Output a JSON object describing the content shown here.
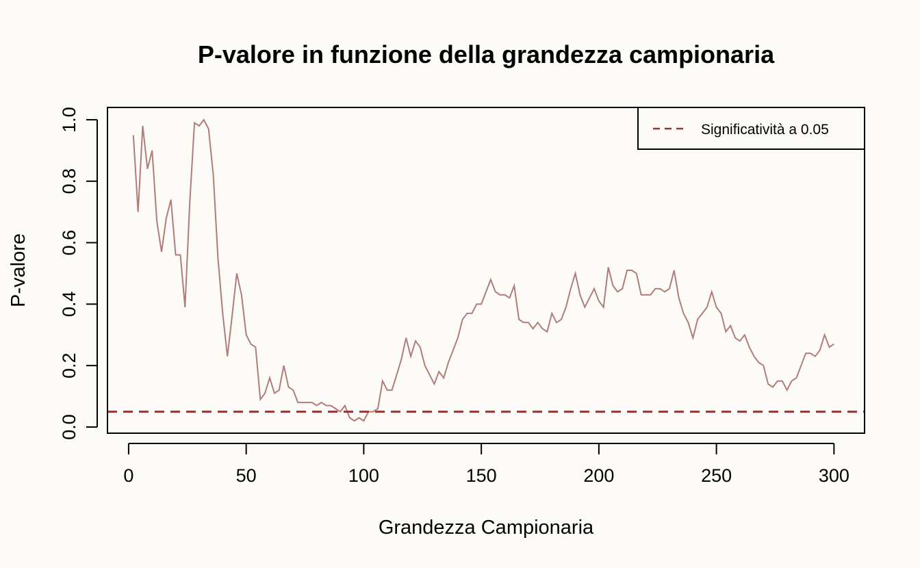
{
  "chart_data": {
    "type": "line",
    "title": "P-valore in funzione della grandezza campionaria",
    "xlabel": "Grandezza Campionaria",
    "ylabel": "P-valore",
    "xlim": [
      -9,
      313
    ],
    "ylim": [
      -0.02,
      1.04
    ],
    "x_ticks": [
      0,
      50,
      100,
      150,
      200,
      250,
      300
    ],
    "y_ticks": [
      0.0,
      0.2,
      0.4,
      0.6,
      0.8,
      1.0
    ],
    "x_tick_labels": [
      "0",
      "50",
      "100",
      "150",
      "200",
      "250",
      "300"
    ],
    "y_tick_labels": [
      "0.0",
      "0.2",
      "0.4",
      "0.6",
      "0.8",
      "1.0"
    ],
    "grid": false,
    "legend_position": "top-right",
    "series": [
      {
        "color": "#b07c7a",
        "x": [
          2,
          4,
          6,
          8,
          10,
          12,
          14,
          16,
          18,
          20,
          22,
          24,
          26,
          28,
          30,
          32,
          34,
          36,
          38,
          40,
          42,
          44,
          46,
          48,
          50,
          52,
          54,
          56,
          58,
          60,
          62,
          64,
          66,
          68,
          70,
          72,
          74,
          76,
          78,
          80,
          82,
          84,
          86,
          88,
          90,
          92,
          94,
          96,
          98,
          100,
          102,
          104,
          106,
          108,
          110,
          112,
          114,
          116,
          118,
          120,
          122,
          124,
          126,
          128,
          130,
          132,
          134,
          136,
          138,
          140,
          142,
          144,
          146,
          148,
          150,
          152,
          154,
          156,
          158,
          160,
          162,
          164,
          166,
          168,
          170,
          172,
          174,
          176,
          178,
          180,
          182,
          184,
          186,
          188,
          190,
          192,
          194,
          196,
          198,
          200,
          202,
          204,
          206,
          208,
          210,
          212,
          214,
          216,
          218,
          220,
          222,
          224,
          226,
          228,
          230,
          232,
          234,
          236,
          238,
          240,
          242,
          244,
          246,
          248,
          250,
          252,
          254,
          256,
          258,
          260,
          262,
          264,
          266,
          268,
          270,
          272,
          274,
          276,
          278,
          280,
          282,
          284,
          286,
          288,
          290,
          292,
          294,
          296,
          298,
          300
        ],
        "y": [
          0.95,
          0.7,
          0.98,
          0.84,
          0.9,
          0.67,
          0.57,
          0.68,
          0.74,
          0.56,
          0.56,
          0.39,
          0.73,
          0.99,
          0.98,
          1.0,
          0.97,
          0.82,
          0.55,
          0.37,
          0.23,
          0.36,
          0.5,
          0.43,
          0.3,
          0.27,
          0.26,
          0.09,
          0.11,
          0.16,
          0.11,
          0.12,
          0.2,
          0.13,
          0.12,
          0.08,
          0.08,
          0.08,
          0.08,
          0.07,
          0.08,
          0.07,
          0.07,
          0.06,
          0.05,
          0.07,
          0.03,
          0.02,
          0.03,
          0.02,
          0.05,
          0.05,
          0.06,
          0.15,
          0.12,
          0.12,
          0.17,
          0.22,
          0.29,
          0.23,
          0.28,
          0.26,
          0.2,
          0.17,
          0.14,
          0.18,
          0.16,
          0.21,
          0.25,
          0.29,
          0.35,
          0.37,
          0.37,
          0.4,
          0.4,
          0.44,
          0.48,
          0.44,
          0.43,
          0.43,
          0.42,
          0.46,
          0.35,
          0.34,
          0.34,
          0.32,
          0.34,
          0.32,
          0.31,
          0.37,
          0.34,
          0.35,
          0.39,
          0.45,
          0.5,
          0.43,
          0.39,
          0.42,
          0.45,
          0.41,
          0.39,
          0.52,
          0.46,
          0.44,
          0.45,
          0.51,
          0.51,
          0.5,
          0.43,
          0.43,
          0.43,
          0.45,
          0.45,
          0.44,
          0.45,
          0.51,
          0.42,
          0.37,
          0.34,
          0.29,
          0.35,
          0.37,
          0.39,
          0.44,
          0.39,
          0.37,
          0.31,
          0.33,
          0.29,
          0.28,
          0.3,
          0.26,
          0.23,
          0.21,
          0.2,
          0.14,
          0.13,
          0.15,
          0.15,
          0.12,
          0.15,
          0.16,
          0.2,
          0.24,
          0.24,
          0.23,
          0.25,
          0.3,
          0.26,
          0.27
        ]
      },
      {
        "name": "Significatività a 0.05",
        "color": "#943535",
        "dashed": true,
        "x": [
          -9,
          313
        ],
        "y": [
          0.05,
          0.05
        ]
      }
    ]
  }
}
